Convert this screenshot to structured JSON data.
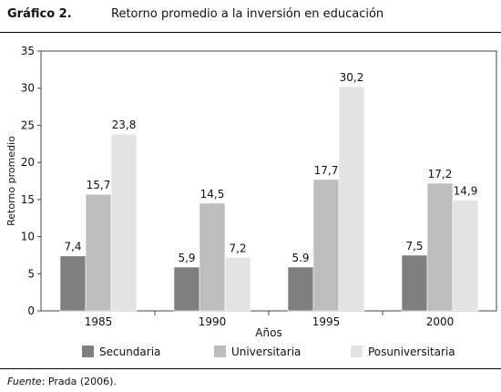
{
  "header": {
    "label": "Gráfico 2.",
    "title": "Retorno promedio a la inversión en educación"
  },
  "chart_data": {
    "type": "bar",
    "categories": [
      "1985",
      "1990",
      "1995",
      "2000"
    ],
    "series": [
      {
        "name": "Secundaria",
        "color": "#7f7f7f",
        "values": [
          7.4,
          5.9,
          5.9,
          7.5
        ],
        "labels": [
          "7,4",
          "5,9",
          "5.9",
          "7,5"
        ]
      },
      {
        "name": "Universitaria",
        "color": "#bdbdbd",
        "values": [
          15.7,
          14.5,
          17.7,
          17.2
        ],
        "labels": [
          "15,7",
          "14,5",
          "17,7",
          "17,2"
        ]
      },
      {
        "name": "Posuniversitaria",
        "color": "#e3e3e3",
        "values": [
          23.8,
          7.2,
          30.2,
          14.9
        ],
        "labels": [
          "23,8",
          "7,2",
          "30,2",
          "14,9"
        ]
      }
    ],
    "xlabel": "Años",
    "ylabel": "Retorno promedio",
    "ylim": [
      0,
      35
    ],
    "yticks": [
      0,
      5,
      10,
      15,
      20,
      25,
      30,
      35
    ],
    "legend_position": "bottom",
    "grid": false
  },
  "source": {
    "prefix": "Fuente",
    "text": ": Prada (2006)."
  }
}
